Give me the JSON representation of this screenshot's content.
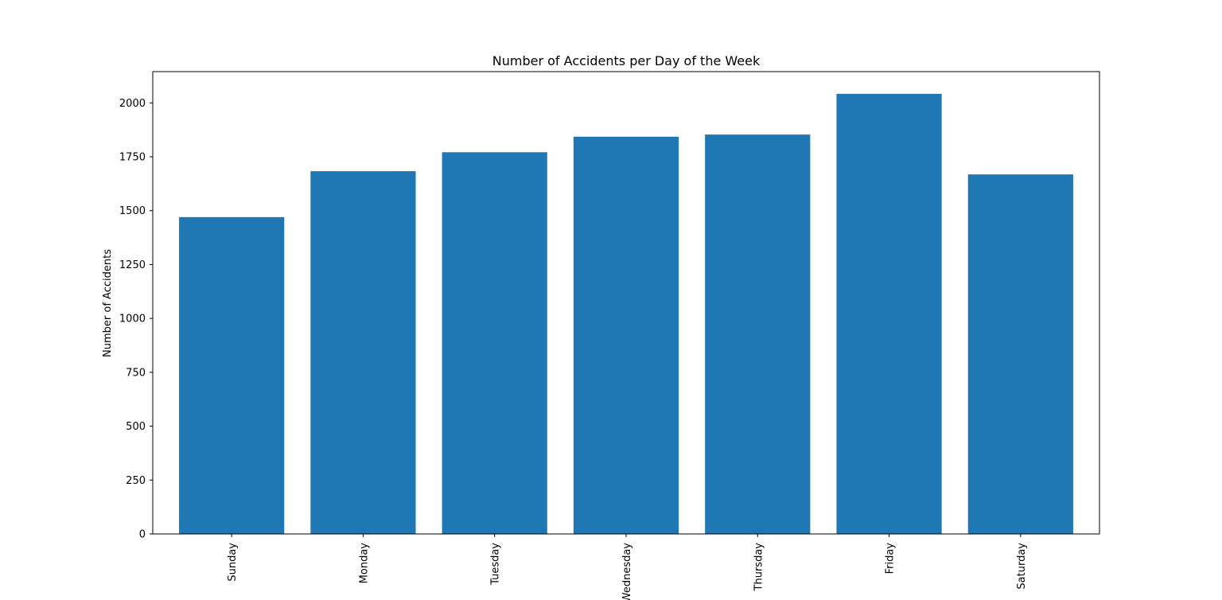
{
  "chart_data": {
    "type": "bar",
    "title": "Number of Accidents per Day of the Week",
    "xlabel": "",
    "ylabel": "Number of Accidents",
    "categories": [
      "Sunday",
      "Monday",
      "Tuesday",
      "Wednesday",
      "Thursday",
      "Friday",
      "Saturday"
    ],
    "values": [
      1470,
      1683,
      1771,
      1843,
      1853,
      2042,
      1668
    ],
    "yticks": [
      0,
      250,
      500,
      750,
      1000,
      1250,
      1500,
      1750,
      2000
    ],
    "ylim": [
      0,
      2145
    ],
    "grid": false,
    "legend": "none",
    "bar_color": "#1f77b4"
  }
}
